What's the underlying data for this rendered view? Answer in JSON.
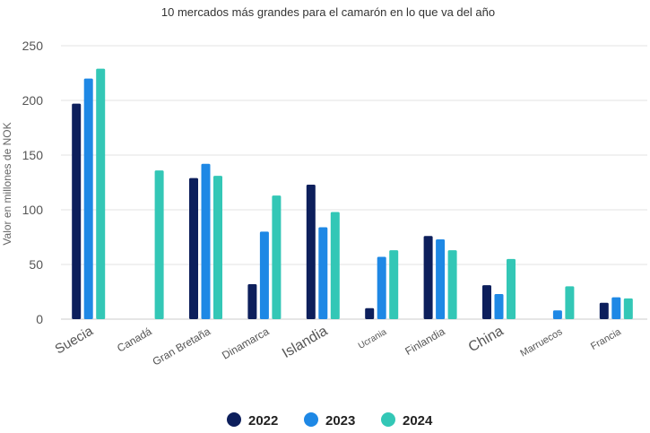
{
  "chart_data": {
    "type": "bar",
    "title": "10 mercados más grandes para el camarón en lo que va del año",
    "xlabel": "",
    "ylabel": "Valor en millones de NOK",
    "ylim": [
      0,
      250
    ],
    "yticks": [
      0,
      50,
      100,
      150,
      200,
      250
    ],
    "grid": true,
    "legend_position": "bottom",
    "categories": [
      "Suecia",
      "Canadá",
      "Gran Bretaña",
      "Dinamarca",
      "Islandia",
      "Ucrania",
      "Finlandia",
      "China",
      "Marruecos",
      "Francia"
    ],
    "series": [
      {
        "name": "2022",
        "color": "#0d1f5c",
        "values": [
          197,
          0,
          129,
          32,
          123,
          10,
          76,
          31,
          0,
          15
        ]
      },
      {
        "name": "2023",
        "color": "#1e88e5",
        "values": [
          220,
          0,
          142,
          80,
          84,
          57,
          73,
          23,
          8,
          20
        ]
      },
      {
        "name": "2024",
        "color": "#33c7b6",
        "values": [
          229,
          136,
          131,
          113,
          98,
          63,
          63,
          55,
          30,
          19
        ]
      }
    ]
  }
}
